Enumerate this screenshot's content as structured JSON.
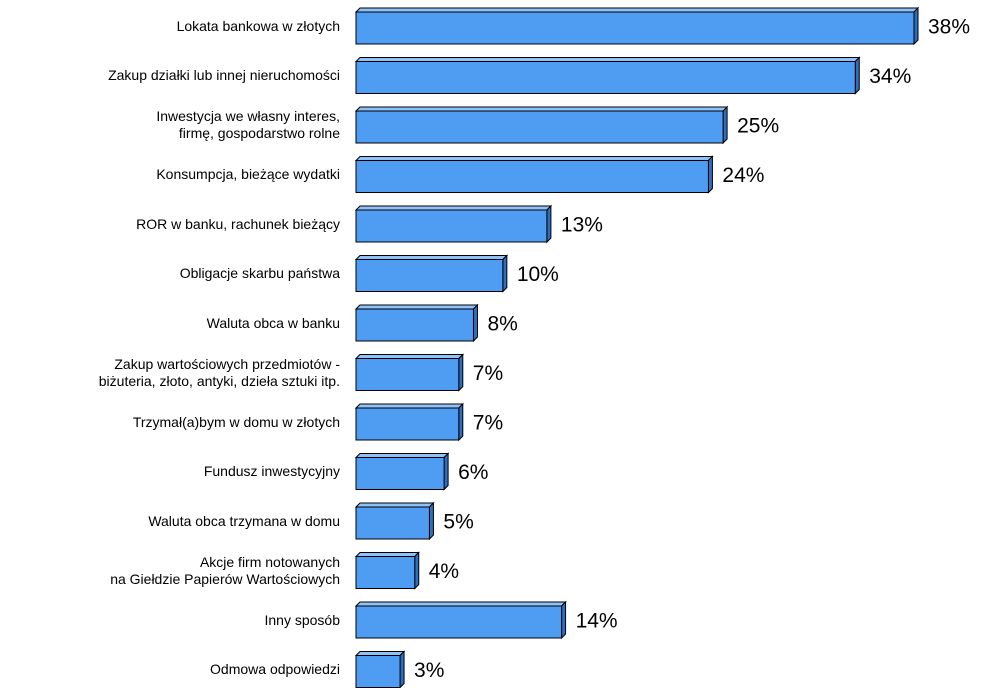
{
  "chart_data": {
    "type": "bar",
    "orientation": "horizontal",
    "color": "#4f9df2",
    "categories": [
      "Lokata bankowa w złotych",
      "Zakup działki lub innej nieruchomości",
      "Inwestycja we własny interes,\nfirmę, gospodarstwo rolne",
      "Konsumpcja, bieżące wydatki",
      "ROR w banku, rachunek bieżący",
      "Obligacje skarbu państwa",
      "Waluta obca w banku",
      "Zakup wartościowych przedmiotów -\nbiżuteria, złoto, antyki, dzieła sztuki itp.",
      "Trzymał(a)bym w domu w złotych",
      "Fundusz inwestycyjny",
      "Waluta obca trzymana w domu",
      "Akcje firm notowanych\nna Giełdzie Papierów Wartościowych",
      "Inny sposób",
      "Odmowa odpowiedzi"
    ],
    "values": [
      38,
      34,
      25,
      24,
      13,
      10,
      8,
      7,
      7,
      6,
      5,
      4,
      14,
      3
    ],
    "value_labels": [
      "38%",
      "34%",
      "25%",
      "24%",
      "13%",
      "10%",
      "8%",
      "7%",
      "7%",
      "6%",
      "5%",
      "4%",
      "14%",
      "3%"
    ]
  }
}
